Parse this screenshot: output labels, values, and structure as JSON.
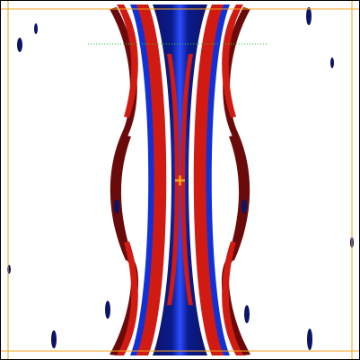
{
  "palette": {
    "background": "#ffffff",
    "deep_blue": "#0a1a8c",
    "dark_navy": "#0c1466",
    "blue": "#1030d8",
    "bright_blue": "#2a4cff",
    "red": "#d11a12",
    "dark_red": "#6a0a0a",
    "frame": "#000000",
    "boundary_line": "#f0a020",
    "guide_line": "#33cc33",
    "marker": "#f5a623"
  },
  "icons": {
    "center_marker": "plus-icon"
  }
}
